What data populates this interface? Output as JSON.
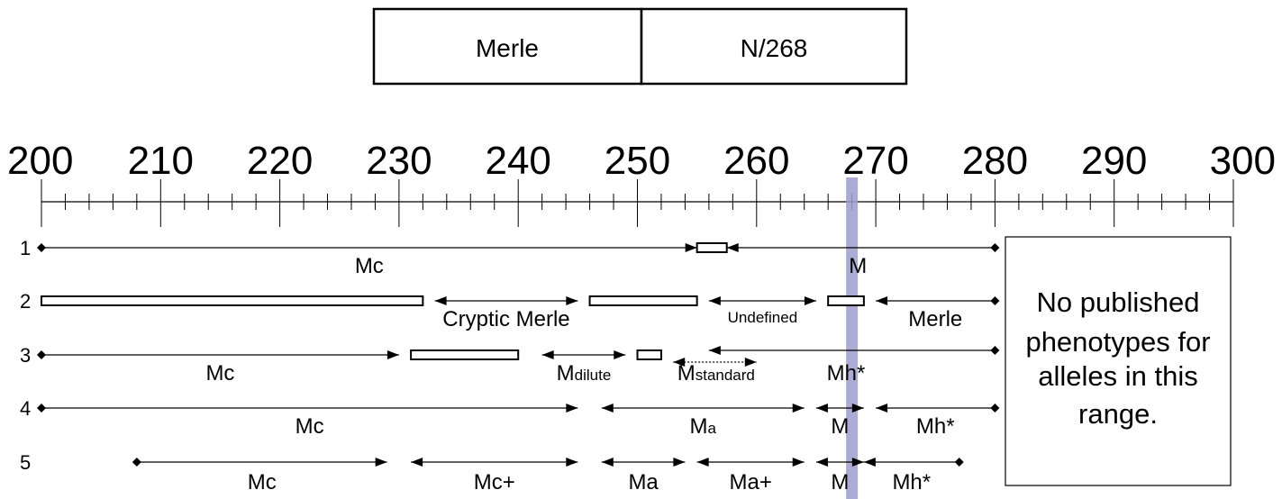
{
  "header": {
    "cells": [
      {
        "label": "Merle"
      },
      {
        "label": "N/268"
      }
    ]
  },
  "axis": {
    "min": 200,
    "max": 300,
    "major_step": 10,
    "minor_step": 2,
    "major_labels": [
      "200",
      "210",
      "220",
      "230",
      "240",
      "250",
      "260",
      "270",
      "280",
      "290",
      "300"
    ]
  },
  "marker": {
    "value": 268,
    "color": "#9c9ccf"
  },
  "no_data_note": {
    "lines": [
      "No published",
      "phenotypes for",
      "alleles in this",
      "range."
    ]
  },
  "rows": [
    {
      "number": "1",
      "ranges": [
        {
          "from": 200,
          "to": 255,
          "label": "Mc",
          "left_end": "diamond",
          "right_end": "arrow"
        },
        {
          "from": 257.5,
          "to": 280,
          "label": "M",
          "left_end": "arrow",
          "right_end": "diamond"
        }
      ],
      "gaps": [
        {
          "from": 255,
          "to": 257.5
        }
      ]
    },
    {
      "number": "2",
      "ranges": [
        {
          "from": 233,
          "to": 245,
          "label": "Cryptic Merle",
          "left_end": "arrow",
          "right_end": "arrow"
        },
        {
          "from": 256,
          "to": 265,
          "label": "Undefined",
          "left_end": "arrow",
          "right_end": "arrow"
        },
        {
          "from": 270,
          "to": 280,
          "label": "Merle",
          "left_end": "arrow",
          "right_end": "diamond"
        }
      ],
      "gaps": [
        {
          "from": 200,
          "to": 232
        },
        {
          "from": 246,
          "to": 255
        },
        {
          "from": 266,
          "to": 269
        }
      ]
    },
    {
      "number": "3",
      "ranges": [
        {
          "from": 200,
          "to": 230,
          "label": "Mc",
          "left_end": "diamond",
          "right_end": "arrow"
        },
        {
          "from": 242,
          "to": 249,
          "label": "M",
          "sub": "dilute",
          "left_end": "arrow",
          "right_end": "arrow"
        },
        {
          "from": 253,
          "to": 260,
          "label": "M",
          "sub": "standard",
          "left_end": "arrow",
          "right_end": "arrow",
          "dotted": true
        },
        {
          "from": 256,
          "to": 280,
          "label": "Mh*",
          "left_end": "arrow",
          "right_end": "diamond"
        }
      ],
      "gaps": [
        {
          "from": 231,
          "to": 240
        },
        {
          "from": 250,
          "to": 252
        }
      ]
    },
    {
      "number": "4",
      "ranges": [
        {
          "from": 200,
          "to": 245,
          "label": "Mc",
          "left_end": "diamond",
          "right_end": "arrow"
        },
        {
          "from": 247,
          "to": 264,
          "label": "M",
          "sub": "a",
          "left_end": "arrow",
          "right_end": "arrow"
        },
        {
          "from": 265,
          "to": 269,
          "label": "M",
          "left_end": "arrow",
          "right_end": "arrow"
        },
        {
          "from": 270,
          "to": 280,
          "label": "Mh*",
          "left_end": "arrow",
          "right_end": "diamond"
        }
      ],
      "gaps": []
    },
    {
      "number": "5",
      "ranges": [
        {
          "from": 208,
          "to": 229,
          "label": "Mc",
          "left_end": "diamond",
          "right_end": "arrow"
        },
        {
          "from": 231,
          "to": 245,
          "label": "Mc+",
          "left_end": "arrow",
          "right_end": "arrow"
        },
        {
          "from": 247,
          "to": 254,
          "label": "Ma",
          "left_end": "arrow",
          "right_end": "arrow"
        },
        {
          "from": 255,
          "to": 264,
          "label": "Ma+",
          "left_end": "arrow",
          "right_end": "arrow"
        },
        {
          "from": 265,
          "to": 269,
          "label": "M",
          "left_end": "arrow",
          "right_end": "arrow"
        },
        {
          "from": 269,
          "to": 277,
          "label": "Mh*",
          "left_end": "arrow",
          "right_end": "diamond"
        }
      ],
      "gaps": []
    }
  ]
}
